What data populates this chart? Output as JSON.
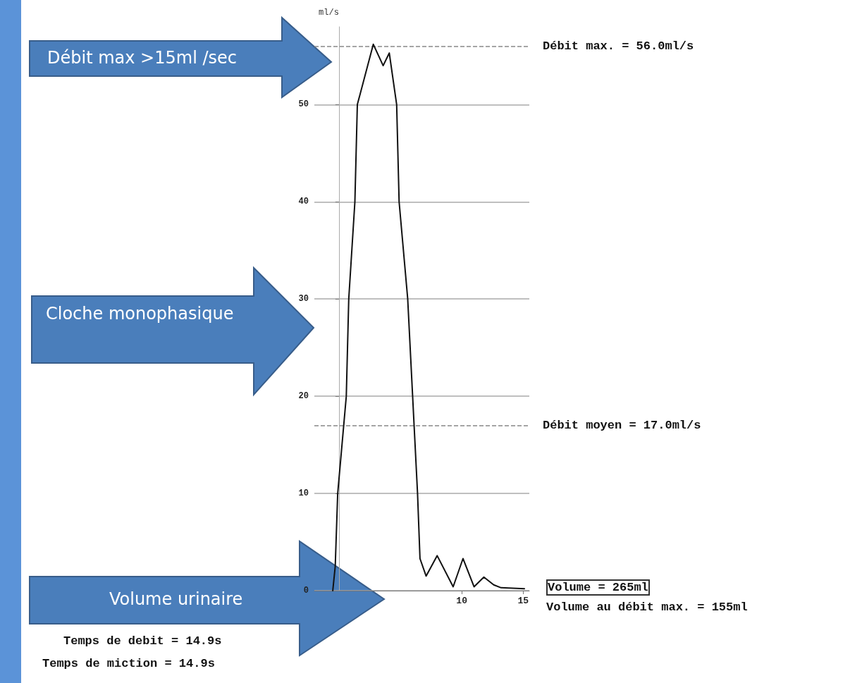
{
  "chart_data": {
    "type": "line",
    "ylabel": "ml/s",
    "x": [
      -0.5,
      -0.3,
      -0.1,
      0.6,
      0.8,
      1.3,
      1.5,
      2.8,
      3.6,
      4.1,
      4.7,
      4.9,
      5.6,
      6.0,
      6.4,
      6.6,
      7.1,
      8.0,
      9.3,
      10.1,
      11.0,
      11.8,
      12.6,
      13.2,
      15.1
    ],
    "series": [
      {
        "color": "#111111",
        "values": [
          0,
          2.5,
          10,
          20,
          30,
          40,
          50,
          56.2,
          54,
          55.3,
          50,
          40,
          30,
          20,
          10,
          3.3,
          1.5,
          3.6,
          0.4,
          3.3,
          0.4,
          1.4,
          0.6,
          0.3,
          0.2
        ]
      }
    ],
    "xlim": [
      -2,
      15.5
    ],
    "xticks": [
      10,
      15
    ],
    "ylim": [
      0,
      58
    ],
    "yticks": [
      0,
      10,
      20,
      30,
      40,
      50
    ],
    "grid": "y",
    "marker": "none",
    "line_style": "solid",
    "ref_lines": [
      {
        "axis": "y",
        "value": 56,
        "label": "Débit max. = 56.0ml/s",
        "line_style": "dashed",
        "color": "#888888"
      },
      {
        "axis": "y",
        "value": 17,
        "label": "Débit moyen = 17.0ml/s",
        "line_style": "dashed",
        "color": "#888888"
      }
    ],
    "annotations": [
      "Débit max >15ml /sec",
      "Cloche monophasique",
      "Volume urinaire",
      "Volume = 265ml",
      "Volume au débit max. = 155ml",
      "Temps de debit = 14.9s",
      "Temps de miction = 14.9s"
    ]
  }
}
